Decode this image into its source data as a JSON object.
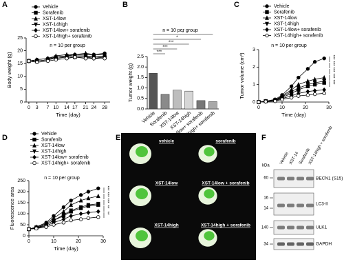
{
  "chart_data": [
    {
      "type": "line",
      "panel_label": "A",
      "annotation": "n = 10 per group",
      "xlabel": "Time (day)",
      "ylabel": "Body weight (g)",
      "x": [
        0,
        3,
        7,
        10,
        14,
        17,
        21,
        24,
        28
      ],
      "xlim": [
        -1,
        30
      ],
      "xticks": [
        0,
        3,
        7,
        10,
        14,
        17,
        21,
        24,
        28
      ],
      "ylim": [
        0,
        25
      ],
      "yticks": [
        0,
        5,
        10,
        15,
        20,
        25
      ],
      "series": [
        {
          "name": "Vehicle",
          "color": "#000000",
          "marker": "circle",
          "values": [
            16,
            16.5,
            17,
            17.5,
            18,
            18.5,
            18.5,
            18.5,
            19
          ]
        },
        {
          "name": "Sorafenib",
          "color": "#000000",
          "marker": "square",
          "values": [
            16,
            16,
            16.5,
            17,
            17.5,
            17.5,
            17.5,
            17.5,
            17.5
          ]
        },
        {
          "name": "XST-14low",
          "color": "#000000",
          "marker": "triangle",
          "values": [
            16,
            16.5,
            17,
            18,
            18.5,
            18.5,
            19,
            18.5,
            18.5
          ]
        },
        {
          "name": "XST-14high",
          "color": "#000000",
          "marker": "triangle-down",
          "values": [
            16,
            16,
            16.5,
            17.5,
            18,
            18,
            18,
            17.5,
            18
          ]
        },
        {
          "name": "XST-14low+ sorafenib",
          "color": "#000000",
          "marker": "diamond",
          "values": [
            16,
            16,
            16.5,
            17.5,
            17.5,
            17.5,
            17.5,
            17,
            17.5
          ]
        },
        {
          "name": "XST-14high+ sorafenib",
          "color": "#000000",
          "marker": "circle-open",
          "values": [
            16,
            15.5,
            16,
            16.5,
            17,
            17.5,
            17,
            17,
            17
          ]
        }
      ]
    },
    {
      "type": "bar",
      "panel_label": "B",
      "annotation": "n = 10 per group",
      "ylabel": "Tumor weight (g)",
      "categories": [
        "Vehicle",
        "Sorafenib",
        "XST-14low",
        "XST-14high",
        "XST-14low+ sorafenib",
        "XST-14high+ sorafenib"
      ],
      "values": [
        1.7,
        0.7,
        0.9,
        0.85,
        0.4,
        0.35
      ],
      "colors": [
        "#555555",
        "#8a8a8a",
        "#bdbdbd",
        "#d6d6d6",
        "#777777",
        "#a8a8a8"
      ],
      "ylim": [
        0,
        2.5
      ],
      "yticks": [
        {
          "value": 0,
          "label": "0.0"
        },
        {
          "value": 0.5,
          "label": "0.5"
        },
        {
          "value": 1,
          "label": "1.0"
        },
        {
          "value": 1.5,
          "label": "1.5"
        },
        {
          "value": 2,
          "label": "2.0"
        },
        {
          "value": 2.5,
          "label": "2.5"
        }
      ],
      "significance": [
        "***",
        "***",
        "***",
        "*",
        "*"
      ]
    },
    {
      "type": "line",
      "panel_label": "C",
      "annotation": "n = 10 per group",
      "xlabel": "Time (day)",
      "ylabel": "Tumor volume (cm³)",
      "x": [
        0,
        3,
        7,
        10,
        14,
        17,
        21,
        24,
        28
      ],
      "xlim": [
        0,
        30
      ],
      "xticks": [
        0,
        10,
        20,
        30
      ],
      "ylim": [
        0,
        3
      ],
      "yticks": [
        0,
        1,
        2,
        3
      ],
      "series": [
        {
          "name": "Vehicle",
          "color": "#000000",
          "marker": "circle",
          "values": [
            0,
            0.05,
            0.15,
            0.4,
            0.9,
            1.4,
            1.9,
            2.3,
            2.5
          ]
        },
        {
          "name": "Sorafenib",
          "color": "#000000",
          "marker": "square",
          "values": [
            0,
            0.05,
            0.1,
            0.25,
            0.5,
            0.7,
            0.9,
            1,
            1.1
          ]
        },
        {
          "name": "XST-14low",
          "color": "#000000",
          "marker": "triangle",
          "values": [
            0,
            0.05,
            0.1,
            0.35,
            0.7,
            1,
            1.2,
            1.3,
            1.4
          ]
        },
        {
          "name": "XST-14high",
          "color": "#000000",
          "marker": "triangle-down",
          "values": [
            0,
            0.05,
            0.1,
            0.3,
            0.6,
            0.8,
            1,
            1.1,
            1.2
          ]
        },
        {
          "name": "XST-14low+ sorafenib",
          "color": "#000000",
          "marker": "diamond",
          "values": [
            0,
            0.03,
            0.08,
            0.2,
            0.35,
            0.5,
            0.6,
            0.65,
            0.7
          ]
        },
        {
          "name": "XST-14high+ sorafenib",
          "color": "#000000",
          "marker": "circle-open",
          "values": [
            0,
            0.03,
            0.05,
            0.15,
            0.25,
            0.35,
            0.4,
            0.45,
            0.5
          ]
        }
      ],
      "significance": [
        "***",
        "***",
        "***",
        "***",
        "***"
      ]
    },
    {
      "type": "line",
      "panel_label": "D",
      "annotation": "n = 10 per group",
      "xlabel": "Time (day)",
      "ylabel": "Fluorescence area",
      "x": [
        0,
        3,
        7,
        10,
        14,
        17,
        21,
        24,
        28
      ],
      "xlim": [
        0,
        30
      ],
      "xticks": [
        0,
        10,
        20,
        30
      ],
      "ylim": [
        0,
        250
      ],
      "yticks": [
        0,
        50,
        100,
        150,
        200,
        250
      ],
      "series": [
        {
          "name": "Vehicle",
          "color": "#000000",
          "marker": "circle",
          "values": [
            30,
            40,
            60,
            90,
            130,
            160,
            185,
            200,
            215
          ]
        },
        {
          "name": "Sorafenib",
          "color": "#000000",
          "marker": "square",
          "values": [
            30,
            35,
            50,
            70,
            90,
            110,
            125,
            135,
            140
          ]
        },
        {
          "name": "XST-14low",
          "color": "#000000",
          "marker": "triangle",
          "values": [
            30,
            40,
            55,
            80,
            110,
            140,
            160,
            170,
            180
          ]
        },
        {
          "name": "XST-14high",
          "color": "#000000",
          "marker": "triangle-down",
          "values": [
            30,
            38,
            50,
            70,
            95,
            115,
            130,
            140,
            145
          ]
        },
        {
          "name": "XST-14low+ sorafenib",
          "color": "#000000",
          "marker": "diamond",
          "values": [
            30,
            35,
            45,
            60,
            75,
            90,
            100,
            105,
            110
          ]
        },
        {
          "name": "XST-14high+ sorafenib",
          "color": "#000000",
          "marker": "circle-open",
          "values": [
            30,
            33,
            40,
            50,
            60,
            70,
            75,
            80,
            85
          ]
        }
      ],
      "significance": [
        "***",
        "***",
        "***",
        "**",
        "**"
      ]
    }
  ],
  "images": {
    "panel_label": "E",
    "labels": [
      "vehicle",
      "sorafenib",
      "XST-14low",
      "XST-14low + sorafenib",
      "XST-14high",
      "XST-14high + sorafenib"
    ]
  },
  "blot": {
    "panel_label": "F",
    "unit": "kDa",
    "lanes": [
      "Vehicle",
      "XST-14",
      "Sorafenib",
      "XST-14high + sorafenib"
    ],
    "rows": [
      {
        "name": "BECN1 (S15)",
        "markers": [
          60
        ]
      },
      {
        "name": "LC3-II",
        "markers": [
          16,
          14
        ]
      },
      {
        "name": "ULK1",
        "markers": [
          140
        ]
      },
      {
        "name": "GAPDH",
        "markers": [
          34
        ]
      }
    ]
  }
}
